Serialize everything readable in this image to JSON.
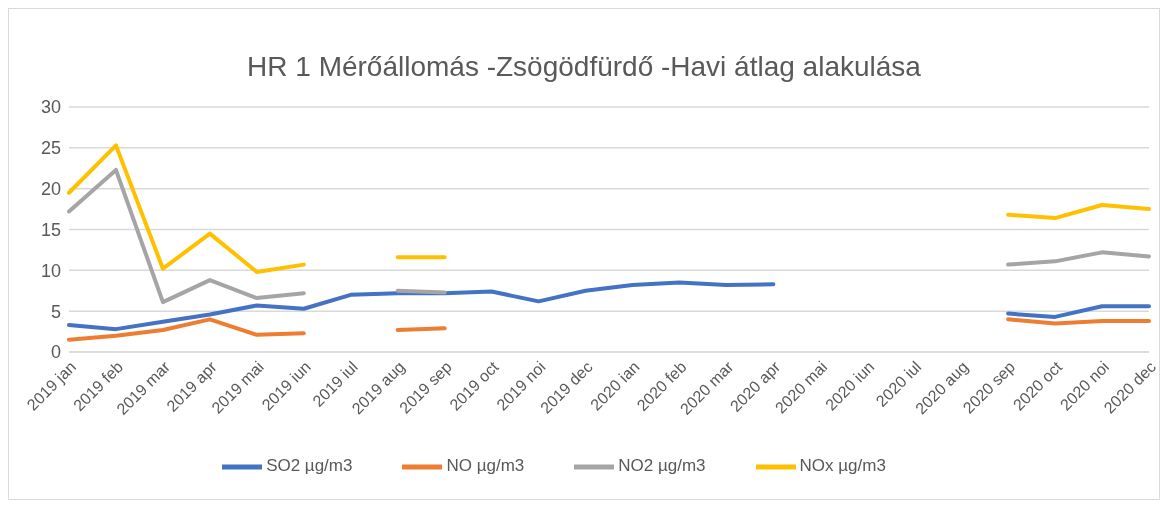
{
  "chart_data": {
    "type": "line",
    "title": "HR 1 Mérőállomás -Zsögödfürdő -Havi átlag alakulása",
    "categories": [
      "2019 jan",
      "2019 feb",
      "2019 mar",
      "2019 apr",
      "2019 mai",
      "2019 iun",
      "2019 iul",
      "2019 aug",
      "2019 sep",
      "2019 oct",
      "2019 noi",
      "2019 dec",
      "2020 ian",
      "2020 feb",
      "2020 mar",
      "2020 apr",
      "2020 mai",
      "2020 iun",
      "2020 iul",
      "2020 aug",
      "2020 sep",
      "2020 oct",
      "2020 noi",
      "2020 dec"
    ],
    "series": [
      {
        "name": "SO2 µg/m3",
        "color": "#4472c4",
        "values": [
          3.3,
          2.8,
          3.7,
          4.6,
          5.7,
          5.3,
          7.0,
          7.2,
          7.2,
          7.4,
          6.2,
          7.5,
          8.2,
          8.5,
          8.2,
          8.3,
          null,
          null,
          null,
          null,
          4.7,
          4.3,
          5.6,
          5.6
        ]
      },
      {
        "name": "NO µg/m3",
        "color": "#ed7d31",
        "values": [
          1.5,
          2.0,
          2.7,
          4.0,
          2.1,
          2.3,
          null,
          2.7,
          2.9,
          null,
          null,
          null,
          null,
          null,
          null,
          null,
          null,
          null,
          null,
          null,
          4.0,
          3.5,
          3.8,
          3.8
        ]
      },
      {
        "name": "NO2 µg/m3",
        "color": "#a5a5a5",
        "values": [
          17.2,
          22.3,
          6.1,
          8.8,
          6.6,
          7.2,
          null,
          7.5,
          7.3,
          null,
          null,
          null,
          null,
          null,
          null,
          null,
          null,
          null,
          null,
          null,
          10.7,
          11.1,
          12.2,
          11.7
        ]
      },
      {
        "name": "NOx µg/m3",
        "color": "#ffc000",
        "values": [
          19.5,
          25.3,
          10.2,
          14.5,
          9.8,
          10.7,
          null,
          11.6,
          11.6,
          null,
          null,
          null,
          null,
          null,
          null,
          null,
          null,
          null,
          null,
          null,
          16.8,
          16.4,
          18.0,
          17.5
        ]
      }
    ],
    "ylim": [
      0,
      30
    ],
    "yticks": [
      0,
      5,
      10,
      15,
      20,
      25,
      30
    ],
    "grid": "y",
    "legend": "bottom",
    "marker": "none",
    "line_style": "solid"
  }
}
